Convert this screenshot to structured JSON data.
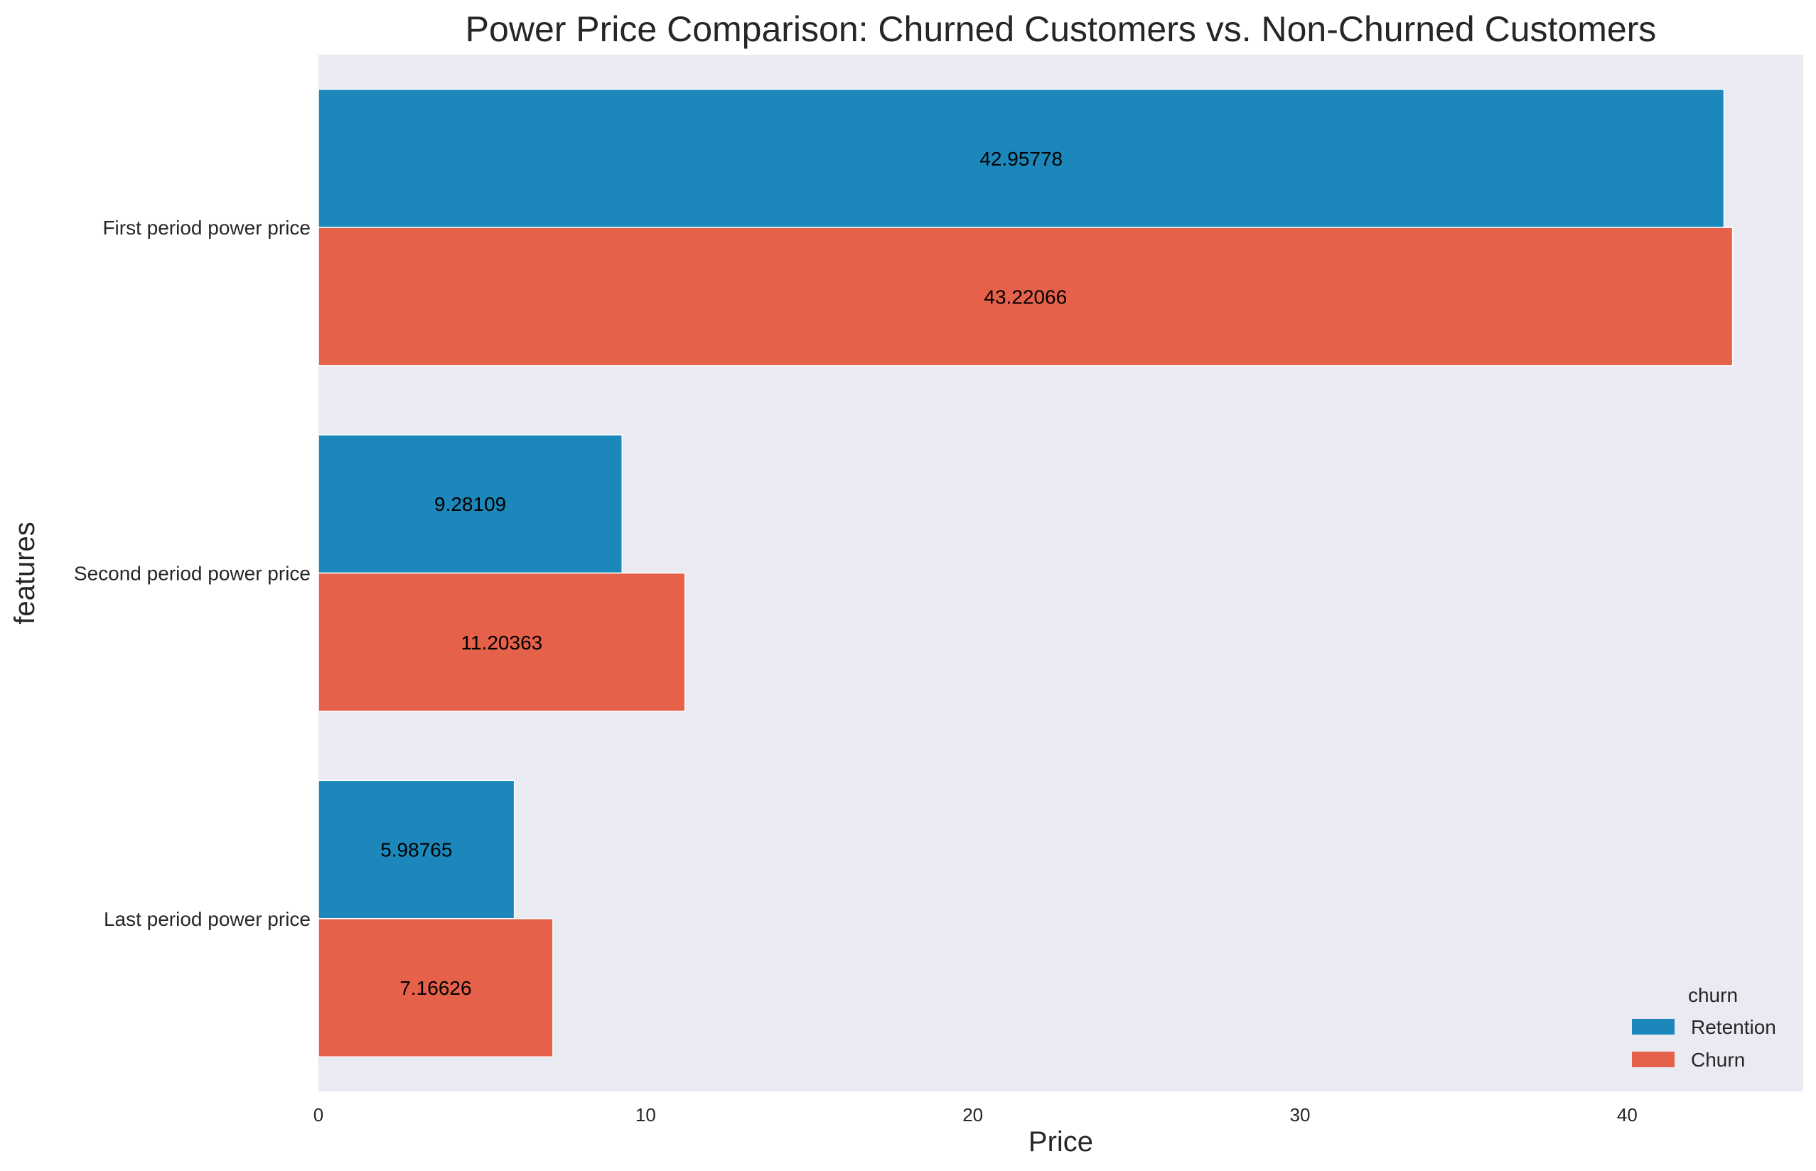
{
  "chart_data": {
    "type": "bar",
    "orientation": "horizontal",
    "title": "Power Price Comparison: Churned Customers vs. Non-Churned Customers",
    "xlabel": "Price",
    "ylabel": "features",
    "categories": [
      "First period power price",
      "Second period power price",
      "Last period power price"
    ],
    "series": [
      {
        "name": "Retention",
        "color": "#1B87BA",
        "values": [
          42.95778,
          9.28109,
          5.98765
        ],
        "labels": [
          "42.95778",
          "9.28109",
          "5.98765"
        ]
      },
      {
        "name": "Churn",
        "color": "#E5614A",
        "values": [
          43.22066,
          11.20363,
          7.16626
        ],
        "labels": [
          "43.22066",
          "11.20363",
          "7.16626"
        ]
      }
    ],
    "xlim": [
      0,
      45.38
    ],
    "xticks": [
      0,
      10,
      20,
      30,
      40
    ],
    "xtick_labels": [
      "0",
      "10",
      "20",
      "30",
      "40"
    ],
    "grid": false,
    "background_color": "#EAEAF2",
    "legend": {
      "title": "churn",
      "position": "bottom-right"
    }
  }
}
